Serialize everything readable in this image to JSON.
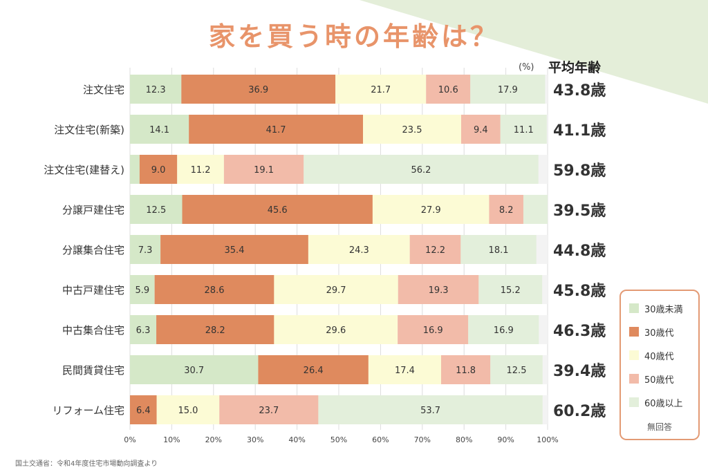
{
  "title": "家を買う時の年齢は？",
  "unit_label": "(%)",
  "avg_header": "平均年齢",
  "source": "国土交通省：令和4年度住宅市場動向調査より",
  "legend_note": "無回答",
  "colors": {
    "under30": "#d5e8c8",
    "age30s": "#df8a5e",
    "age40s": "#fcfbd5",
    "age50s": "#f2bba9",
    "over60": "#e3efdb",
    "no_answer": "#f3f3f3",
    "title": "#e8946a",
    "legend_border": "#e39a74"
  },
  "chart_data": {
    "type": "bar",
    "orientation": "horizontal",
    "stacked": true,
    "categories": [
      "注文住宅",
      "注文住宅(新築)",
      "注文住宅(建替え)",
      "分譲戸建住宅",
      "分譲集合住宅",
      "中古戸建住宅",
      "中古集合住宅",
      "民間賃貸住宅",
      "リフォーム住宅"
    ],
    "series": [
      {
        "name": "30歳未満",
        "color_key": "under30",
        "values": [
          12.3,
          14.1,
          2.3,
          12.5,
          7.3,
          5.9,
          6.3,
          30.7,
          0
        ],
        "labels": [
          "12.3",
          "14.1",
          "",
          "12.5",
          "7.3",
          "5.9",
          "6.3",
          "30.7",
          ""
        ]
      },
      {
        "name": "30歳代",
        "color_key": "age30s",
        "values": [
          36.9,
          41.7,
          9.0,
          45.6,
          35.4,
          28.6,
          28.2,
          26.4,
          6.4
        ],
        "labels": [
          "36.9",
          "41.7",
          "9.0",
          "45.6",
          "35.4",
          "28.6",
          "28.2",
          "26.4",
          "6.4"
        ]
      },
      {
        "name": "40歳代",
        "color_key": "age40s",
        "values": [
          21.7,
          23.5,
          11.2,
          27.9,
          24.3,
          29.7,
          29.6,
          17.4,
          15.0
        ],
        "labels": [
          "21.7",
          "23.5",
          "11.2",
          "27.9",
          "24.3",
          "29.7",
          "29.6",
          "17.4",
          "15.0"
        ]
      },
      {
        "name": "50歳代",
        "color_key": "age50s",
        "values": [
          10.6,
          9.4,
          19.1,
          8.2,
          12.2,
          19.3,
          16.9,
          11.8,
          23.7
        ],
        "labels": [
          "10.6",
          "9.4",
          "19.1",
          "8.2",
          "12.2",
          "19.3",
          "16.9",
          "11.8",
          "23.7"
        ]
      },
      {
        "name": "60歳以上",
        "color_key": "over60",
        "values": [
          17.9,
          11.1,
          56.2,
          5.8,
          18.1,
          15.2,
          16.9,
          12.5,
          53.7
        ],
        "labels": [
          "17.9",
          "11.1",
          "56.2",
          "",
          "18.1",
          "15.2",
          "16.9",
          "12.5",
          "53.7"
        ]
      }
    ],
    "averages": [
      "43.8歳",
      "41.1歳",
      "59.8歳",
      "39.5歳",
      "44.8歳",
      "45.8歳",
      "46.3歳",
      "39.4歳",
      "60.2歳"
    ],
    "xlim": [
      0,
      100
    ],
    "xticks": [
      0,
      10,
      20,
      30,
      40,
      50,
      60,
      70,
      80,
      90,
      100
    ],
    "xtick_labels": [
      "0%",
      "10%",
      "20%",
      "30%",
      "40%",
      "50%",
      "60%",
      "70%",
      "80%",
      "90%",
      "100%"
    ],
    "grid": true,
    "legend_position": "right"
  }
}
